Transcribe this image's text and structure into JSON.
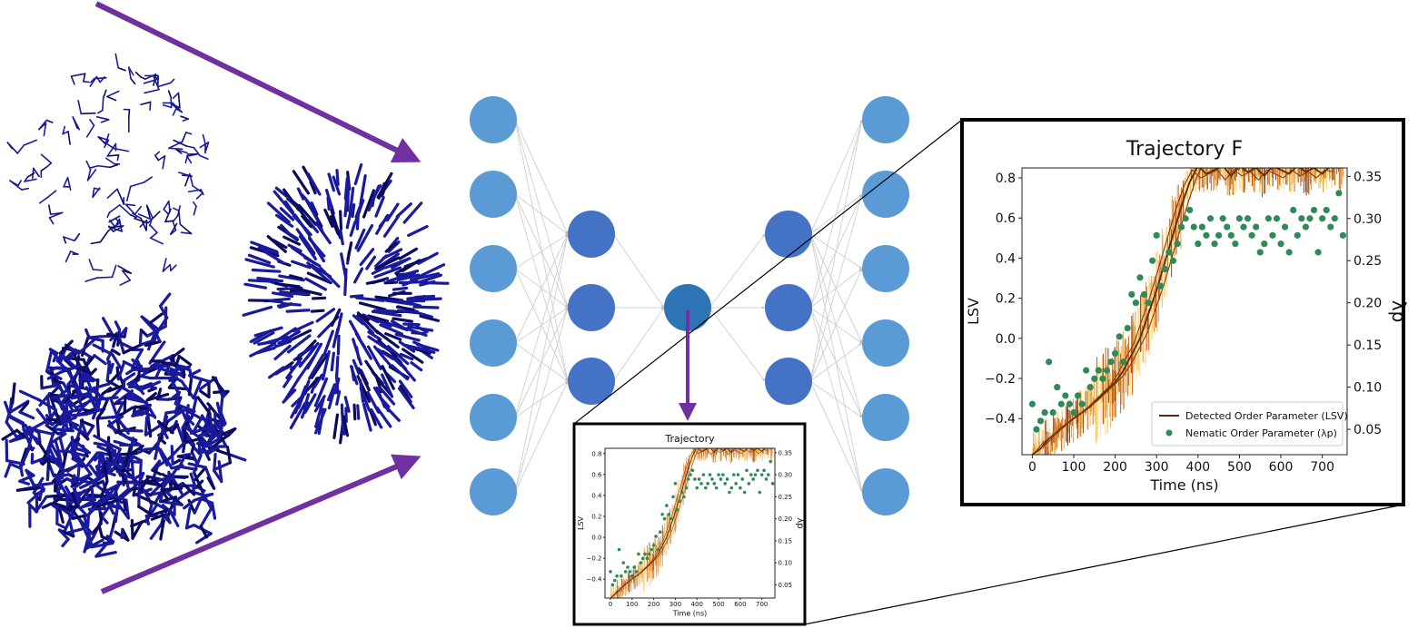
{
  "colors": {
    "arrow": "#7030a0",
    "node_outer": "#5b9bd5",
    "node_hidden": "#4472c4",
    "node_latent": "#2e75b6",
    "polymer": "#1a1a9e",
    "lsv_line": "#5a2a0a",
    "band": "#f5b342",
    "scatter": "#2e8b57"
  },
  "network": {
    "layers": [
      6,
      3,
      1,
      3,
      6
    ],
    "node_types": [
      "input",
      "hidden",
      "latent",
      "hidden",
      "output"
    ]
  },
  "structures": {
    "items": [
      {
        "name": "dispersed-polymer",
        "state": "disordered"
      },
      {
        "name": "aggregated-polymer",
        "state": "amorphous"
      },
      {
        "name": "ordered-polymer",
        "state": "nematic"
      }
    ]
  },
  "chart_data": [
    {
      "type": "line",
      "title": "Trajectory",
      "xlabel": "Time (ns)",
      "ylabel": "LSV",
      "y2label": "λp",
      "xlim": [
        -25,
        760
      ],
      "ylim": [
        -0.58,
        0.85
      ],
      "y2lim": [
        0.02,
        0.36
      ],
      "xticks": [
        "0",
        "100",
        "200",
        "300",
        "400",
        "500",
        "600",
        "700"
      ],
      "yticks": [
        "−0.4",
        "−0.2",
        "0.0",
        "0.2",
        "0.4",
        "0.6",
        "0.8"
      ],
      "y2ticks": [
        "0.05",
        "0.10",
        "0.15",
        "0.20",
        "0.25",
        "0.30",
        "0.35"
      ],
      "legend": "none"
    },
    {
      "type": "line",
      "title": "Trajectory F",
      "xlabel": "Time (ns)",
      "ylabel": "LSV",
      "y2label": "λp",
      "xlim": [
        -25,
        760
      ],
      "ylim": [
        -0.58,
        0.85
      ],
      "y2lim": [
        0.02,
        0.36
      ],
      "xticks": [
        "0",
        "100",
        "200",
        "300",
        "400",
        "500",
        "600",
        "700"
      ],
      "yticks": [
        "−0.4",
        "−0.2",
        "0.0",
        "0.2",
        "0.4",
        "0.6",
        "0.8"
      ],
      "y2ticks": [
        "0.05",
        "0.10",
        "0.15",
        "0.20",
        "0.25",
        "0.30",
        "0.35"
      ],
      "legend": "bottom-right",
      "legend_entries": [
        "Detected Order Parameter (LSV)",
        "Nematic Order Parameter (λp)"
      ],
      "series": [
        {
          "name": "Detected Order Parameter (LSV)",
          "axis": "left",
          "x": [
            0,
            20,
            40,
            60,
            80,
            100,
            120,
            140,
            160,
            180,
            200,
            220,
            240,
            260,
            280,
            300,
            320,
            340,
            360,
            380,
            400,
            420,
            440,
            460,
            480,
            500,
            520,
            540,
            560,
            580,
            600,
            620,
            640,
            660,
            680,
            700,
            720,
            740
          ],
          "y": [
            -0.58,
            -0.55,
            -0.5,
            -0.47,
            -0.43,
            -0.4,
            -0.37,
            -0.34,
            -0.3,
            -0.26,
            -0.22,
            -0.16,
            -0.08,
            0.0,
            0.12,
            0.24,
            0.38,
            0.52,
            0.66,
            0.78,
            0.86,
            0.82,
            0.84,
            0.86,
            0.81,
            0.86,
            0.83,
            0.85,
            0.81,
            0.86,
            0.84,
            0.82,
            0.86,
            0.83,
            0.85,
            0.82,
            0.86,
            0.85
          ]
        },
        {
          "name": "Nematic Order Parameter (λp)",
          "axis": "right",
          "x": [
            0,
            10,
            20,
            30,
            40,
            50,
            60,
            70,
            80,
            90,
            100,
            110,
            120,
            130,
            140,
            150,
            160,
            170,
            180,
            190,
            200,
            210,
            220,
            230,
            240,
            250,
            260,
            270,
            280,
            290,
            300,
            310,
            320,
            330,
            340,
            350,
            360,
            370,
            380,
            390,
            400,
            410,
            420,
            430,
            440,
            450,
            460,
            470,
            480,
            490,
            500,
            510,
            520,
            530,
            540,
            550,
            560,
            570,
            580,
            590,
            600,
            610,
            620,
            630,
            640,
            650,
            660,
            670,
            680,
            690,
            700,
            710,
            720,
            730,
            740,
            750
          ],
          "y": [
            0.08,
            0.05,
            0.06,
            0.07,
            0.13,
            0.07,
            0.1,
            0.08,
            0.09,
            0.08,
            0.07,
            0.09,
            0.08,
            0.12,
            0.1,
            0.11,
            0.12,
            0.11,
            0.12,
            0.13,
            0.14,
            0.16,
            0.13,
            0.17,
            0.21,
            0.2,
            0.23,
            0.21,
            0.2,
            0.25,
            0.28,
            0.22,
            0.24,
            0.26,
            0.25,
            0.27,
            0.29,
            0.3,
            0.31,
            0.29,
            0.27,
            0.29,
            0.28,
            0.3,
            0.27,
            0.28,
            0.3,
            0.29,
            0.28,
            0.27,
            0.3,
            0.29,
            0.3,
            0.28,
            0.29,
            0.26,
            0.27,
            0.3,
            0.28,
            0.3,
            0.27,
            0.29,
            0.26,
            0.31,
            0.28,
            0.3,
            0.29,
            0.3,
            0.31,
            0.26,
            0.3,
            0.31,
            0.29,
            0.3,
            0.33,
            0.28
          ]
        }
      ]
    }
  ]
}
